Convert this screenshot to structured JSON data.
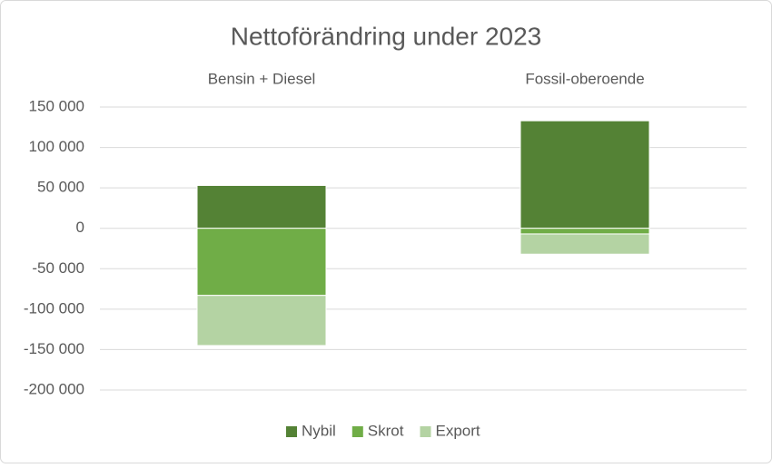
{
  "chart_data": {
    "type": "stacked-bar",
    "title": "Nettoförändring under 2023",
    "categories": [
      "Bensin + Diesel",
      "Fossil-oberoende"
    ],
    "series": [
      {
        "name": "Nybil",
        "color": "#548235",
        "values": [
          53000,
          133000
        ]
      },
      {
        "name": "Skrot",
        "color": "#70ad47",
        "values": [
          -83000,
          -7000
        ]
      },
      {
        "name": "Export",
        "color": "#b4d3a3",
        "values": [
          -62000,
          -25000
        ]
      }
    ],
    "ylim": [
      -200000,
      150000
    ],
    "yticks": [
      {
        "value": -200000,
        "label": "-200 000"
      },
      {
        "value": -150000,
        "label": "-150 000"
      },
      {
        "value": -100000,
        "label": "-100 000"
      },
      {
        "value": -50000,
        "label": "-50 000"
      },
      0,
      {
        "value": 50000,
        "label": "50 000"
      },
      {
        "value": 100000,
        "label": "100 000"
      },
      {
        "value": 150000,
        "label": "150 000"
      }
    ],
    "grid": true,
    "legend": "bottom"
  }
}
